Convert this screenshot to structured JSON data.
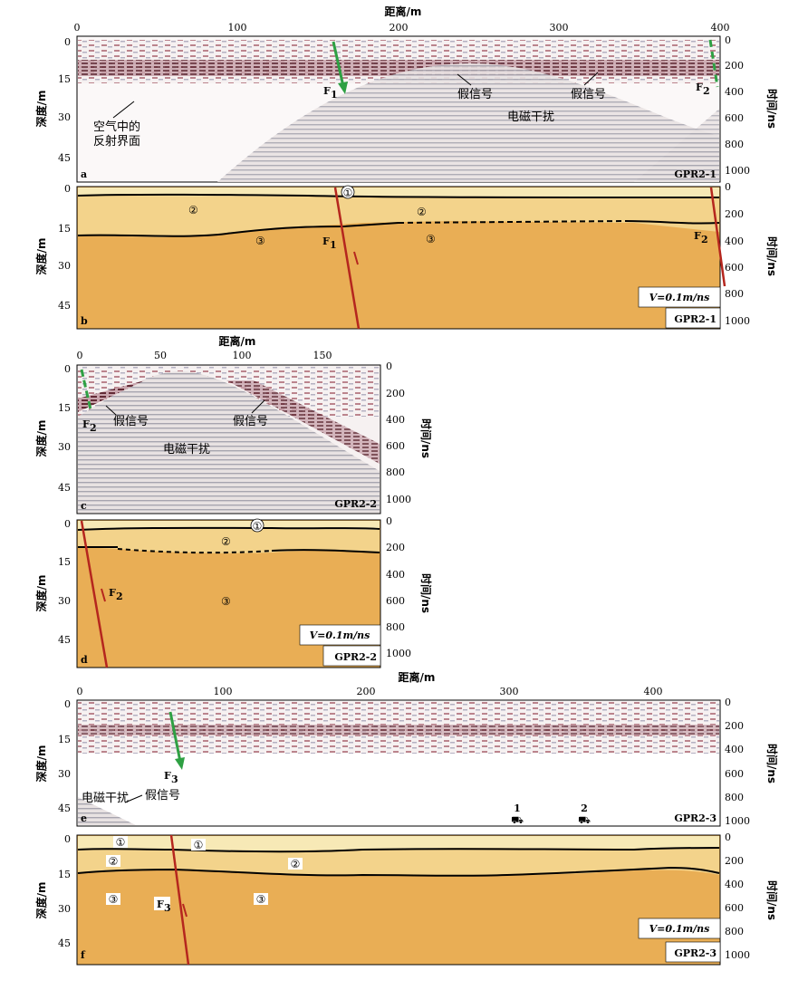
{
  "axis_titles": {
    "distance": "距离/m",
    "depth": "深度/m",
    "time": "时间/ns"
  },
  "panels": [
    {
      "id": "a",
      "name": "GPR2-1",
      "kind": "radar",
      "x_ticks": [
        "0",
        "100",
        "200",
        "300",
        "400"
      ],
      "depth_ticks": [
        "0",
        "15",
        "30",
        "45"
      ],
      "time_ticks": [
        "0",
        "200",
        "400",
        "600",
        "800",
        "1000"
      ],
      "labels": {
        "fault": "F",
        "fault_sub": "1",
        "fault2": "F",
        "fault2_sub": "2",
        "false1": "假信号",
        "false2": "假信号",
        "em": "电磁干扰",
        "air": "空气中的",
        "air2": "反射界面"
      }
    },
    {
      "id": "b",
      "name": "GPR2-1",
      "kind": "interp",
      "depth_ticks": [
        "0",
        "15",
        "30",
        "45"
      ],
      "time_ticks": [
        "0",
        "200",
        "400",
        "600",
        "800",
        "1000"
      ],
      "labels": {
        "l1": "①",
        "l2a": "②",
        "l2b": "②",
        "l3a": "③",
        "l3b": "③",
        "f1": "F",
        "f1s": "1",
        "f2": "F",
        "f2s": "2",
        "vel": "V=0.1m/ns"
      }
    },
    {
      "id": "c",
      "name": "GPR2-2",
      "kind": "radar",
      "x_ticks": [
        "0",
        "50",
        "100",
        "150"
      ],
      "depth_ticks": [
        "0",
        "15",
        "30",
        "45"
      ],
      "time_ticks": [
        "0",
        "200",
        "400",
        "600",
        "800",
        "1000"
      ],
      "labels": {
        "fault": "F",
        "fault_sub": "2",
        "false1": "假信号",
        "false2": "假信号",
        "em": "电磁干扰"
      }
    },
    {
      "id": "d",
      "name": "GPR2-2",
      "kind": "interp",
      "depth_ticks": [
        "0",
        "15",
        "30",
        "45"
      ],
      "time_ticks": [
        "0",
        "200",
        "400",
        "600",
        "800",
        "1000"
      ],
      "labels": {
        "l1": "①",
        "l2": "②",
        "l3": "③",
        "f2": "F",
        "f2s": "2",
        "vel": "V=0.1m/ns"
      }
    },
    {
      "id": "e",
      "name": "GPR2-3",
      "kind": "radar",
      "x_ticks": [
        "0",
        "100",
        "200",
        "300",
        "400"
      ],
      "depth_ticks": [
        "0",
        "15",
        "30",
        "45"
      ],
      "time_ticks": [
        "0",
        "200",
        "400",
        "600",
        "800",
        "1000"
      ],
      "labels": {
        "fault": "F",
        "fault_sub": "3",
        "em": "电磁干扰",
        "false1": "假信号",
        "m1": "1",
        "m2": "2"
      }
    },
    {
      "id": "f",
      "name": "GPR2-3",
      "kind": "interp",
      "depth_ticks": [
        "0",
        "15",
        "30",
        "45"
      ],
      "time_ticks": [
        "0",
        "200",
        "400",
        "600",
        "800",
        "1000"
      ],
      "labels": {
        "l1a": "①",
        "l1b": "①",
        "l2a": "②",
        "l2b": "②",
        "l3a": "③",
        "l3b": "③",
        "f3": "F",
        "f3s": "3",
        "vel": "V=0.1m/ns"
      }
    }
  ],
  "colors": {
    "layer1": "#f7e9b6",
    "layer2": "#f3d38b",
    "layer3": "#e9ae55",
    "fault_red": "#b5261e",
    "fault_green": "#2ea043",
    "radar_dark": "#5a1420",
    "radar_bg": "#f4f0f0"
  }
}
